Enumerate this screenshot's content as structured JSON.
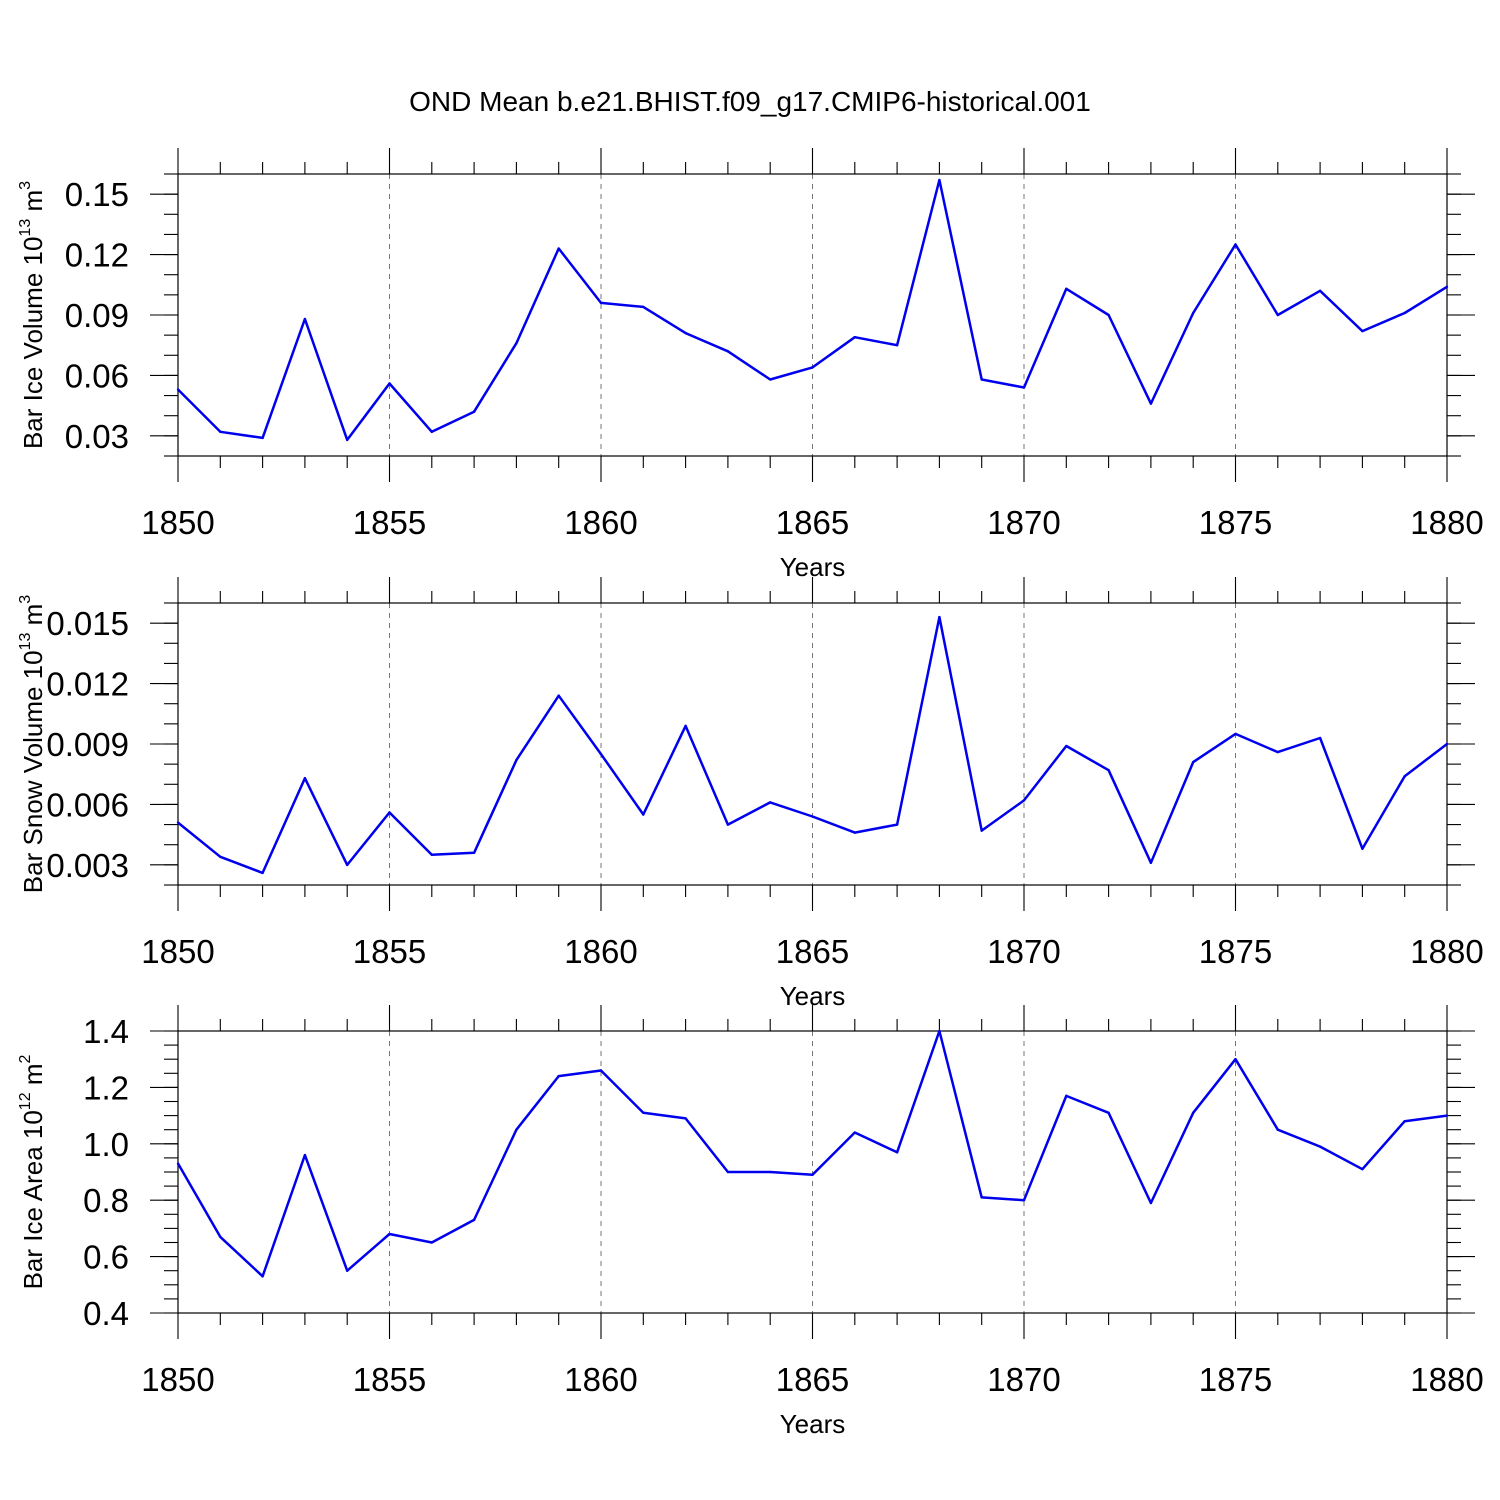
{
  "title": "OND Mean b.e21.BHIST.f09_g17.CMIP6-historical.001",
  "line_color": "#0000ee",
  "chart_data": [
    {
      "type": "line",
      "title": "OND Mean b.e21.BHIST.f09_g17.CMIP6-historical.001",
      "xlabel": "Years",
      "ylabel_text": "Bar Ice Volume 10",
      "ylabel_exp": "13",
      "ylabel_unit": " m",
      "ylabel_unit_exp": "3",
      "xlim": [
        1850,
        1880
      ],
      "ylim": [
        0.02,
        0.16
      ],
      "y_ticks": [
        0.03,
        0.06,
        0.09,
        0.12,
        0.15
      ],
      "y_tick_labels": [
        "0.03",
        "0.06",
        "0.09",
        "0.12",
        "0.15"
      ],
      "y_minor_step": 0.01,
      "x_ticks": [
        1850,
        1855,
        1860,
        1865,
        1870,
        1875,
        1880
      ],
      "x_tick_labels": [
        "1850",
        "1855",
        "1860",
        "1865",
        "1870",
        "1875",
        "1880"
      ],
      "grid": "x-dashed",
      "x": [
        1850,
        1851,
        1852,
        1853,
        1854,
        1855,
        1856,
        1857,
        1858,
        1859,
        1860,
        1861,
        1862,
        1863,
        1864,
        1865,
        1866,
        1867,
        1868,
        1869,
        1870,
        1871,
        1872,
        1873,
        1874,
        1875,
        1876,
        1877,
        1878,
        1879,
        1880
      ],
      "values": [
        0.053,
        0.032,
        0.029,
        0.088,
        0.028,
        0.056,
        0.032,
        0.042,
        0.076,
        0.123,
        0.096,
        0.094,
        0.081,
        0.072,
        0.058,
        0.064,
        0.079,
        0.075,
        0.157,
        0.058,
        0.054,
        0.103,
        0.09,
        0.046,
        0.091,
        0.125,
        0.09,
        0.102,
        0.082,
        0.091,
        0.104
      ]
    },
    {
      "type": "line",
      "xlabel": "Years",
      "ylabel_text": "Bar Snow Volume 10",
      "ylabel_exp": "13",
      "ylabel_unit": " m",
      "ylabel_unit_exp": "3",
      "xlim": [
        1850,
        1880
      ],
      "ylim": [
        0.002,
        0.016
      ],
      "y_ticks": [
        0.003,
        0.006,
        0.009,
        0.012,
        0.015
      ],
      "y_tick_labels": [
        "0.003",
        "0.006",
        "0.009",
        "0.012",
        "0.015"
      ],
      "y_minor_step": 0.001,
      "x_ticks": [
        1850,
        1855,
        1860,
        1865,
        1870,
        1875,
        1880
      ],
      "x_tick_labels": [
        "1850",
        "1855",
        "1860",
        "1865",
        "1870",
        "1875",
        "1880"
      ],
      "grid": "x-dashed",
      "x": [
        1850,
        1851,
        1852,
        1853,
        1854,
        1855,
        1856,
        1857,
        1858,
        1859,
        1860,
        1861,
        1862,
        1863,
        1864,
        1865,
        1866,
        1867,
        1868,
        1869,
        1870,
        1871,
        1872,
        1873,
        1874,
        1875,
        1876,
        1877,
        1878,
        1879,
        1880
      ],
      "values": [
        0.0051,
        0.0034,
        0.0026,
        0.0073,
        0.003,
        0.0056,
        0.0035,
        0.0036,
        0.0082,
        0.0114,
        0.0085,
        0.0055,
        0.0099,
        0.005,
        0.0061,
        0.0054,
        0.0046,
        0.005,
        0.0153,
        0.0047,
        0.0062,
        0.0089,
        0.0077,
        0.0031,
        0.0081,
        0.0095,
        0.0086,
        0.0093,
        0.0038,
        0.0074,
        0.009
      ]
    },
    {
      "type": "line",
      "xlabel": "Years",
      "ylabel_text": "Bar Ice Area 10",
      "ylabel_exp": "12",
      "ylabel_unit": " m",
      "ylabel_unit_exp": "2",
      "xlim": [
        1850,
        1880
      ],
      "ylim": [
        0.4,
        1.4
      ],
      "y_ticks": [
        0.4,
        0.6,
        0.8,
        1.0,
        1.2,
        1.4
      ],
      "y_tick_labels": [
        "0.4",
        "0.6",
        "0.8",
        "1.0",
        "1.2",
        "1.4"
      ],
      "y_minor_step": 0.05,
      "x_ticks": [
        1850,
        1855,
        1860,
        1865,
        1870,
        1875,
        1880
      ],
      "x_tick_labels": [
        "1850",
        "1855",
        "1860",
        "1865",
        "1870",
        "1875",
        "1880"
      ],
      "grid": "x-dashed",
      "x": [
        1850,
        1851,
        1852,
        1853,
        1854,
        1855,
        1856,
        1857,
        1858,
        1859,
        1860,
        1861,
        1862,
        1863,
        1864,
        1865,
        1866,
        1867,
        1868,
        1869,
        1870,
        1871,
        1872,
        1873,
        1874,
        1875,
        1876,
        1877,
        1878,
        1879,
        1880
      ],
      "values": [
        0.93,
        0.67,
        0.53,
        0.96,
        0.55,
        0.68,
        0.65,
        0.73,
        1.05,
        1.24,
        1.26,
        1.11,
        1.09,
        0.9,
        0.9,
        0.89,
        1.04,
        0.97,
        1.4,
        0.81,
        0.8,
        1.17,
        1.11,
        0.79,
        1.11,
        1.3,
        1.05,
        0.99,
        0.91,
        1.08,
        1.1
      ]
    }
  ]
}
